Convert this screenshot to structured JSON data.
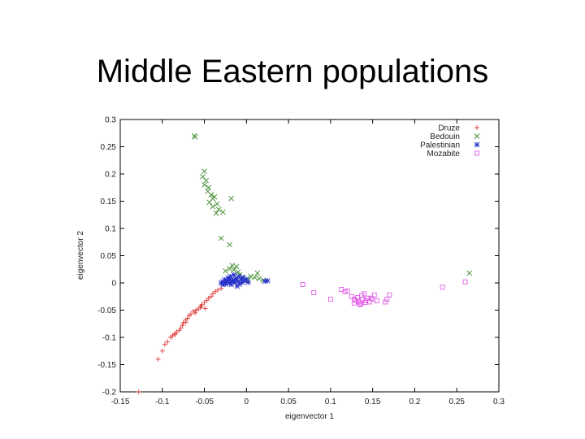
{
  "slide": {
    "title": "Middle Eastern populations"
  },
  "chart_data": {
    "type": "scatter",
    "title": "",
    "xlabel": "eigenvector 1",
    "ylabel": "eigenvector 2",
    "xlim": [
      -0.15,
      0.3
    ],
    "ylim": [
      -0.2,
      0.3
    ],
    "x_ticks": [
      -0.15,
      -0.1,
      -0.05,
      0,
      0.05,
      0.1,
      0.15,
      0.2,
      0.25,
      0.3
    ],
    "x_tick_labels": [
      "-0.15",
      "-0.1",
      "-0.05",
      "0",
      "0.05",
      "0.1",
      "0.15",
      "0.2",
      "0.25",
      "0.3"
    ],
    "y_ticks": [
      -0.2,
      -0.15,
      -0.1,
      -0.05,
      0,
      0.05,
      0.1,
      0.15,
      0.2,
      0.25,
      0.3
    ],
    "y_tick_labels": [
      "-0.2",
      "-0.15",
      "-0.1",
      "-0.05",
      "0",
      "0.05",
      "0.1",
      "0.15",
      "0.2",
      "0.25",
      "0.3"
    ],
    "grid": false,
    "legend_position": "top-right",
    "series": [
      {
        "name": "Druze",
        "marker": "plus",
        "color": "#e03a3a",
        "points": [
          [
            -0.128,
            -0.2
          ],
          [
            -0.105,
            -0.14
          ],
          [
            -0.1,
            -0.125
          ],
          [
            -0.097,
            -0.113
          ],
          [
            -0.094,
            -0.108
          ],
          [
            -0.09,
            -0.1
          ],
          [
            -0.088,
            -0.097
          ],
          [
            -0.085,
            -0.093
          ],
          [
            -0.083,
            -0.09
          ],
          [
            -0.08,
            -0.087
          ],
          [
            -0.078,
            -0.083
          ],
          [
            -0.076,
            -0.078
          ],
          [
            -0.075,
            -0.073
          ],
          [
            -0.072,
            -0.068
          ],
          [
            -0.07,
            -0.065
          ],
          [
            -0.068,
            -0.06
          ],
          [
            -0.066,
            -0.057
          ],
          [
            -0.063,
            -0.052
          ],
          [
            -0.06,
            -0.05
          ],
          [
            -0.057,
            -0.048
          ],
          [
            -0.055,
            -0.045
          ],
          [
            -0.053,
            -0.04
          ],
          [
            -0.05,
            -0.036
          ],
          [
            -0.047,
            -0.032
          ],
          [
            -0.045,
            -0.028
          ],
          [
            -0.042,
            -0.025
          ],
          [
            -0.04,
            -0.02
          ],
          [
            -0.037,
            -0.016
          ],
          [
            -0.034,
            -0.013
          ],
          [
            -0.03,
            -0.01
          ],
          [
            -0.085,
            -0.095
          ],
          [
            -0.072,
            -0.072
          ],
          [
            -0.061,
            -0.055
          ],
          [
            -0.054,
            -0.043
          ],
          [
            -0.049,
            -0.047
          ]
        ]
      },
      {
        "name": "Bedouin",
        "marker": "cross",
        "color": "#3d8a2a",
        "points": [
          [
            -0.062,
            0.27
          ],
          [
            -0.061,
            0.268
          ],
          [
            -0.05,
            0.205
          ],
          [
            -0.052,
            0.195
          ],
          [
            -0.048,
            0.188
          ],
          [
            -0.05,
            0.18
          ],
          [
            -0.045,
            0.175
          ],
          [
            -0.046,
            0.168
          ],
          [
            -0.042,
            0.162
          ],
          [
            -0.04,
            0.155
          ],
          [
            -0.038,
            0.158
          ],
          [
            -0.044,
            0.148
          ],
          [
            -0.035,
            0.145
          ],
          [
            -0.04,
            0.14
          ],
          [
            -0.033,
            0.135
          ],
          [
            -0.036,
            0.128
          ],
          [
            -0.028,
            0.13
          ],
          [
            -0.018,
            0.155
          ],
          [
            -0.03,
            0.082
          ],
          [
            -0.02,
            0.07
          ],
          [
            -0.017,
            0.032
          ],
          [
            -0.012,
            0.03
          ],
          [
            -0.02,
            0.026
          ],
          [
            -0.015,
            0.024
          ],
          [
            -0.01,
            0.02
          ],
          [
            -0.008,
            0.015
          ],
          [
            0.005,
            0.012
          ],
          [
            0.01,
            0.01
          ],
          [
            0.013,
            0.018
          ],
          [
            0.015,
            0.008
          ],
          [
            0.002,
            0.005
          ],
          [
            -0.005,
            0.01
          ],
          [
            0.265,
            0.018
          ],
          [
            0.02,
            0.005
          ],
          [
            -0.025,
            0.022
          ]
        ]
      },
      {
        "name": "Palestinian",
        "marker": "star",
        "color": "#2430c8",
        "points": [
          [
            -0.03,
            0.0
          ],
          [
            -0.028,
            0.002
          ],
          [
            -0.025,
            -0.002
          ],
          [
            -0.023,
            0.004
          ],
          [
            -0.02,
            0.0
          ],
          [
            -0.018,
            -0.003
          ],
          [
            -0.016,
            0.005
          ],
          [
            -0.014,
            0.001
          ],
          [
            -0.012,
            0.008
          ],
          [
            -0.01,
            0.003
          ],
          [
            -0.008,
            -0.002
          ],
          [
            -0.006,
            0.006
          ],
          [
            -0.004,
            0.01
          ],
          [
            -0.002,
            0.004
          ],
          [
            0.0,
            0.007
          ],
          [
            0.002,
            0.001
          ],
          [
            -0.022,
            0.009
          ],
          [
            -0.019,
            0.012
          ],
          [
            -0.015,
            0.015
          ],
          [
            -0.026,
            0.006
          ],
          [
            -0.011,
            -0.006
          ],
          [
            -0.017,
            0.003
          ],
          [
            -0.024,
            0.001
          ],
          [
            -0.009,
            0.012
          ],
          [
            0.022,
            0.003
          ],
          [
            0.025,
            0.004
          ],
          [
            -0.028,
            -0.003
          ],
          [
            -0.013,
            0.006
          ],
          [
            -0.005,
            0.001
          ],
          [
            -0.02,
            0.006
          ]
        ]
      },
      {
        "name": "Mozabite",
        "marker": "square",
        "color": "#e25ae8",
        "points": [
          [
            0.067,
            -0.003
          ],
          [
            0.08,
            -0.018
          ],
          [
            0.1,
            -0.03
          ],
          [
            0.113,
            -0.012
          ],
          [
            0.117,
            -0.016
          ],
          [
            0.12,
            -0.015
          ],
          [
            0.125,
            -0.025
          ],
          [
            0.128,
            -0.03
          ],
          [
            0.13,
            -0.032
          ],
          [
            0.132,
            -0.027
          ],
          [
            0.134,
            -0.035
          ],
          [
            0.136,
            -0.038
          ],
          [
            0.137,
            -0.023
          ],
          [
            0.138,
            -0.03
          ],
          [
            0.14,
            -0.02
          ],
          [
            0.142,
            -0.033
          ],
          [
            0.144,
            -0.028
          ],
          [
            0.146,
            -0.035
          ],
          [
            0.15,
            -0.03
          ],
          [
            0.152,
            -0.022
          ],
          [
            0.155,
            -0.033
          ],
          [
            0.165,
            -0.035
          ],
          [
            0.167,
            -0.03
          ],
          [
            0.17,
            -0.022
          ],
          [
            0.233,
            -0.008
          ],
          [
            0.26,
            0.002
          ],
          [
            0.135,
            -0.04
          ],
          [
            0.148,
            -0.028
          ],
          [
            0.128,
            -0.037
          ],
          [
            0.141,
            -0.036
          ]
        ]
      }
    ]
  }
}
